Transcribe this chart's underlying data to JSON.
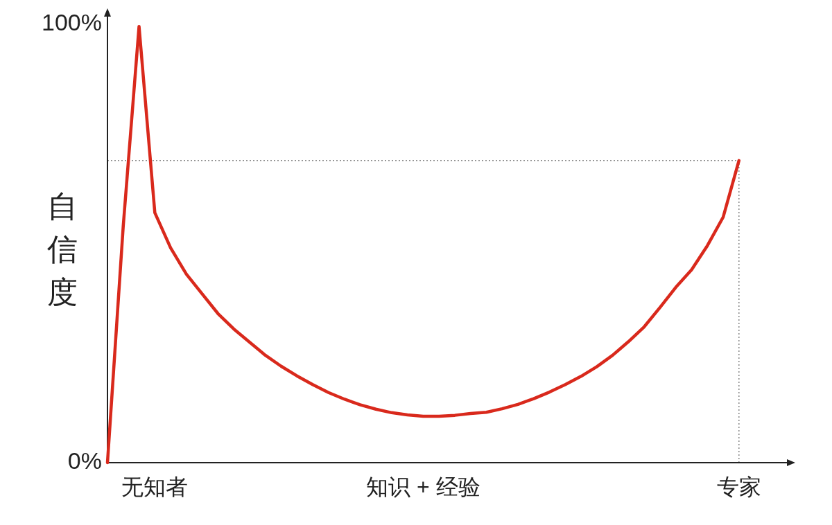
{
  "chart_data": {
    "type": "line",
    "ylabel": "自信度",
    "ylim": [
      0,
      103
    ],
    "categories": [
      null,
      null,
      null,
      "无知者",
      null,
      null,
      null,
      null,
      null,
      null,
      null,
      null,
      null,
      null,
      null,
      null,
      null,
      null,
      null,
      null,
      "知识 + 经验",
      null,
      null,
      null,
      null,
      null,
      null,
      null,
      null,
      null,
      null,
      null,
      null,
      null,
      null,
      null,
      null,
      null,
      null,
      null,
      "专家"
    ],
    "yticks": [
      {
        "value": 0,
        "label": "0%"
      },
      {
        "value": 100,
        "label": "100%"
      }
    ],
    "grid": false,
    "marker": "none",
    "line_style": "solid",
    "ref_lines": [
      {
        "axis": "y",
        "value": 68.9,
        "color": "#888888",
        "line_style": "dotted"
      },
      {
        "axis": "x",
        "value": "专家",
        "color": "#888888",
        "line_style": "dotted"
      }
    ],
    "series": [
      {
        "color": "#d9291c",
        "values": [
          0,
          54,
          99.5,
          57,
          49,
          43,
          38.5,
          34,
          30.5,
          27.5,
          24.5,
          22,
          19.8,
          17.8,
          16,
          14.5,
          13.2,
          12.2,
          11.4,
          10.9,
          10.6,
          10.6,
          10.8,
          11.2,
          11.5,
          12.3,
          13.3,
          14.6,
          16.1,
          17.8,
          19.7,
          21.9,
          24.5,
          27.6,
          31,
          35.4,
          40,
          44,
          49.5,
          56,
          68.9
        ]
      }
    ]
  }
}
